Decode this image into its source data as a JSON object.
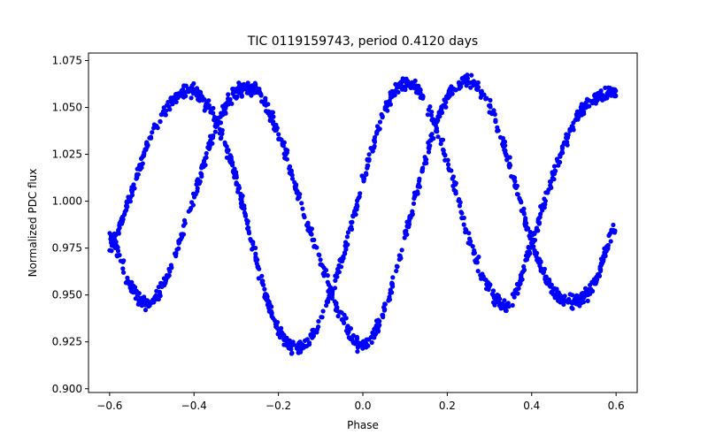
{
  "chart_data": {
    "type": "scatter",
    "title": "TIC 0119159743, period 0.4120 days",
    "xlabel": "Phase",
    "ylabel": "Normalized PDC flux",
    "xlim": [
      -0.65,
      0.65
    ],
    "ylim": [
      0.898,
      1.079
    ],
    "x_ticks": [
      -0.6,
      -0.4,
      -0.2,
      0.0,
      0.2,
      0.4,
      0.6
    ],
    "x_tick_labels": [
      "−0.6",
      "−0.4",
      "−0.2",
      "0.0",
      "0.2",
      "0.4",
      "0.6"
    ],
    "y_ticks": [
      0.9,
      0.925,
      0.95,
      0.975,
      1.0,
      1.025,
      1.05,
      1.075
    ],
    "y_tick_labels": [
      "0.900",
      "0.925",
      "0.950",
      "0.975",
      "1.000",
      "1.025",
      "1.050",
      "1.075"
    ],
    "grid": false,
    "legend": "none",
    "marker_color": "#0000ff",
    "series": [
      {
        "x": [
          -0.6,
          -0.55,
          -0.5,
          -0.45,
          -0.4,
          -0.35,
          -0.3,
          -0.25,
          -0.2,
          -0.15,
          -0.1,
          -0.05,
          0.0,
          0.05,
          0.1,
          0.15,
          0.2,
          0.25,
          0.3,
          0.35,
          0.4,
          0.45,
          0.5,
          0.55,
          0.6
        ],
        "y": [
          0.982,
          0.955,
          0.946,
          0.968,
          1.002,
          1.038,
          1.058,
          1.058,
          1.036,
          1.001,
          0.967,
          0.938,
          0.923,
          0.941,
          0.981,
          1.024,
          1.055,
          1.064,
          1.052,
          1.018,
          0.979,
          0.953,
          0.947,
          0.957,
          0.987
        ]
      },
      {
        "x": [
          -0.6,
          -0.55,
          -0.5,
          -0.45,
          -0.4,
          -0.35,
          -0.3,
          -0.25,
          -0.2,
          -0.15,
          -0.1,
          -0.05,
          0.0,
          0.05,
          0.1,
          0.15,
          0.2,
          0.25,
          0.3,
          0.35,
          0.4,
          0.45,
          0.5,
          0.55,
          0.6
        ],
        "y": [
          0.974,
          1.003,
          1.036,
          1.054,
          1.058,
          1.044,
          1.012,
          0.966,
          0.932,
          0.922,
          0.938,
          0.968,
          1.01,
          1.048,
          1.063,
          1.052,
          1.021,
          0.981,
          0.953,
          0.946,
          0.978,
          1.013,
          1.042,
          1.055,
          1.058
        ]
      }
    ]
  }
}
